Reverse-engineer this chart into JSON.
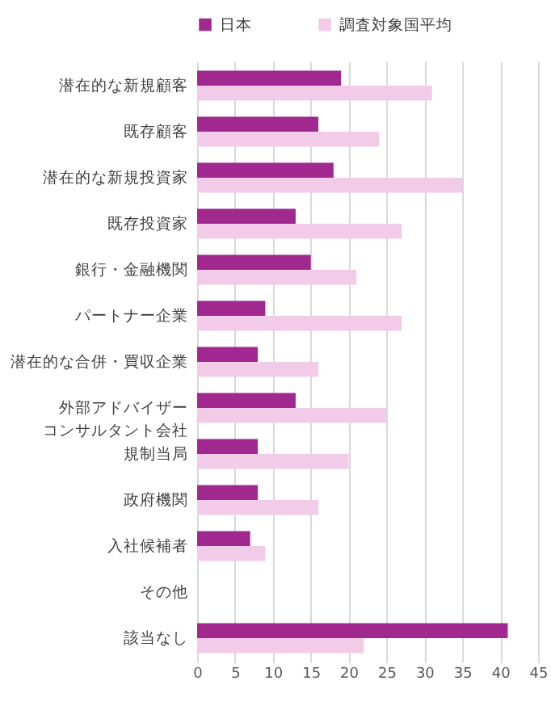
{
  "chart_data": {
    "type": "bar",
    "orientation": "horizontal",
    "categories": [
      "潜在的な新規顧客",
      "既存顧客",
      "潜在的な新規投資家",
      "既存投資家",
      "銀行・金融機関",
      "パートナー企業",
      "潜在的な合併・買収企業",
      "外部アドバイザーコンサルタント会社",
      "規制当局",
      "政府機関",
      "入社候補者",
      "その他",
      "該当なし"
    ],
    "series": [
      {
        "name": "日本",
        "color": "#a0288f",
        "values": [
          19,
          16,
          18,
          13,
          15,
          9,
          8,
          13,
          8,
          8,
          7,
          0,
          41
        ]
      },
      {
        "name": "調査対象国平均",
        "color": "#f2cbe9",
        "values": [
          31,
          24,
          35,
          27,
          21,
          27,
          16,
          25,
          20,
          16,
          9,
          0,
          22
        ]
      }
    ],
    "xlim": [
      0,
      45
    ],
    "xticks": [
      0,
      5,
      10,
      15,
      20,
      25,
      30,
      35,
      40,
      45
    ],
    "grid": "x",
    "legend": "top"
  }
}
